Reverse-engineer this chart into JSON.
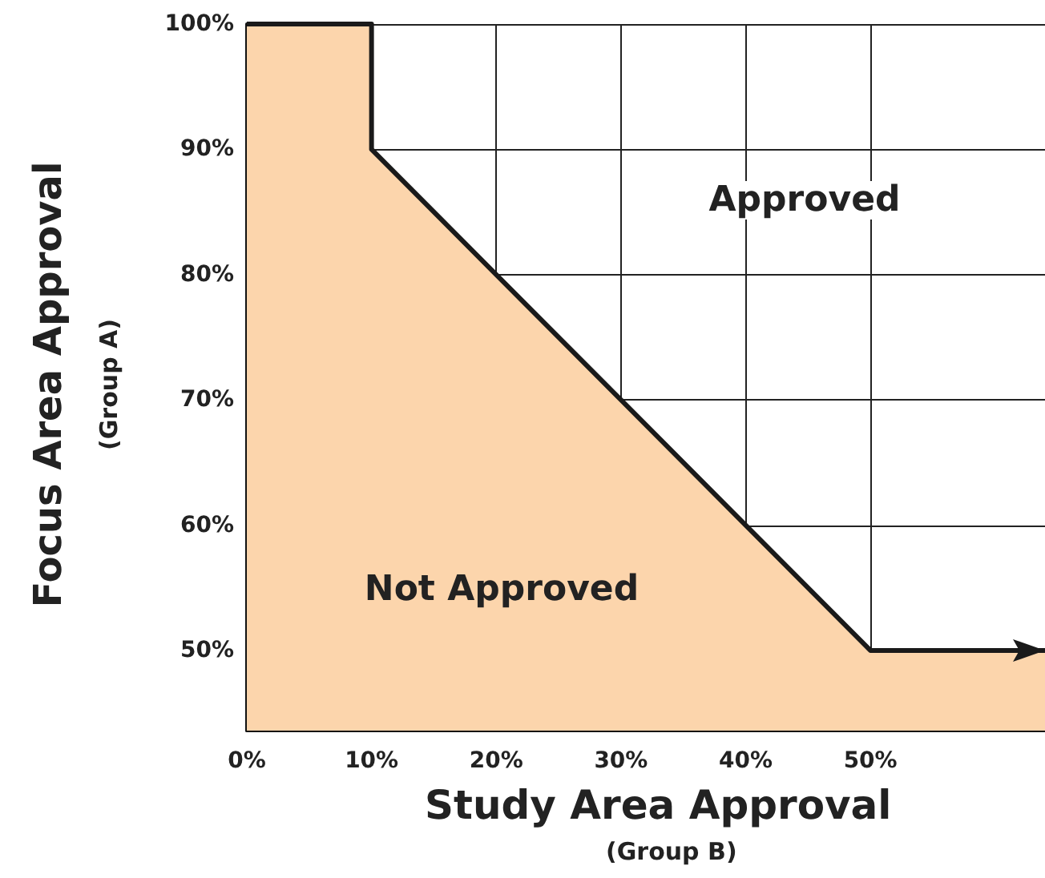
{
  "chart_data": {
    "type": "area",
    "xlabel": "Study Area Approval\n(Group B)",
    "ylabel": "Focus Area Approval\n(Group A)",
    "x": [
      0,
      10,
      10,
      20,
      30,
      40,
      50,
      64
    ],
    "series": [
      {
        "color": "#fcd5ac",
        "values": [
          100,
          100,
          90,
          80,
          70,
          60,
          50,
          50
        ]
      }
    ],
    "xlim": [
      0,
      64
    ],
    "xticks": [
      {
        "value": 0,
        "label": "0%"
      },
      {
        "value": 10,
        "label": "10%"
      },
      {
        "value": 20,
        "label": "20%"
      },
      {
        "value": 30,
        "label": "30%"
      },
      {
        "value": 40,
        "label": "40%"
      },
      {
        "value": 50,
        "label": "50%"
      }
    ],
    "ylim": [
      43.6,
      100
    ],
    "yticks": [
      {
        "value": 50,
        "label": "50%"
      },
      {
        "value": 60,
        "label": "60%"
      },
      {
        "value": 70,
        "label": "70%"
      },
      {
        "value": 80,
        "label": "80%"
      },
      {
        "value": 90,
        "label": "90%"
      },
      {
        "value": 100,
        "label": "100%"
      }
    ],
    "grid": true,
    "marker": "none",
    "line_style": "solid",
    "annotations": [
      "Approved",
      "Not Approved"
    ]
  }
}
